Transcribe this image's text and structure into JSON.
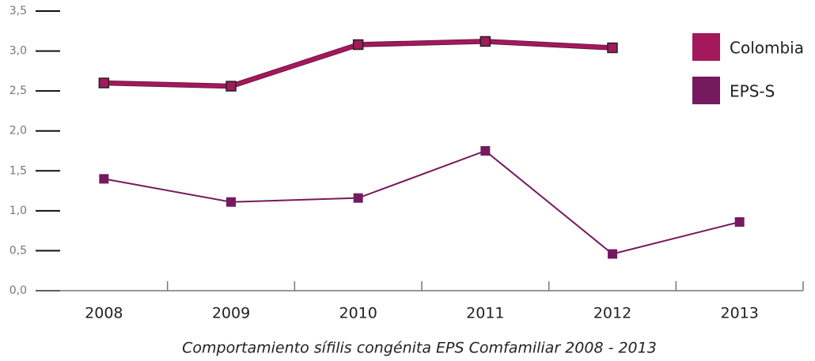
{
  "chart_data": {
    "type": "line",
    "caption": "Comportamiento sífilis congénita EPS Comfamiliar 2008 - 2013",
    "categories": [
      "2008",
      "2009",
      "2010",
      "2011",
      "2012",
      "2013"
    ],
    "series": [
      {
        "name": "Colombia",
        "color": "#a3195b",
        "values": [
          2.6,
          2.56,
          3.08,
          3.12,
          3.04,
          null
        ]
      },
      {
        "name": "EPS-S",
        "color": "#761a60",
        "values": [
          1.4,
          1.11,
          1.16,
          1.75,
          0.46,
          0.86
        ]
      }
    ],
    "ylim": [
      0,
      3.5
    ],
    "yticks": [
      {
        "value": 0,
        "label": "0,0"
      },
      {
        "value": 0.5,
        "label": "0,5"
      },
      {
        "value": 1,
        "label": "1,0"
      },
      {
        "value": 1.5,
        "label": "1,5"
      },
      {
        "value": 2,
        "label": "2,0"
      },
      {
        "value": 2.5,
        "label": "2,5"
      },
      {
        "value": 3,
        "label": "3,0"
      },
      {
        "value": 3.5,
        "label": "3,5"
      }
    ],
    "legend": "top-right"
  }
}
